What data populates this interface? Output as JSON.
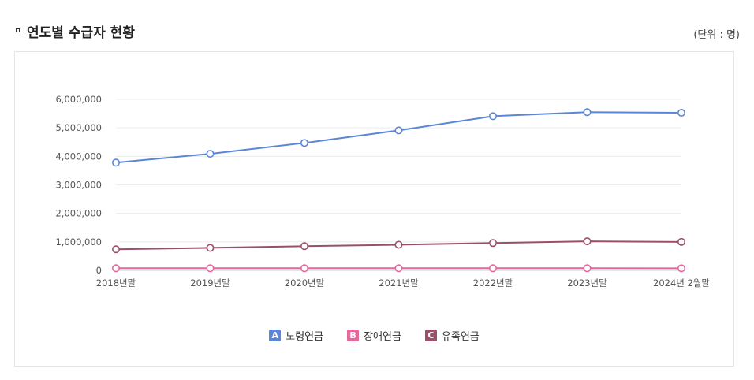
{
  "header": {
    "title": "연도별 수급자 현황",
    "unit": "(단위 : 명)"
  },
  "colors": {
    "old_age": "#5b86d6",
    "disability": "#e4679e",
    "survivor": "#9a5068"
  },
  "chart_data": {
    "type": "line",
    "title": "",
    "xlabel": "",
    "ylabel": "",
    "ylim": [
      0,
      6000000
    ],
    "yticks": [
      0,
      1000000,
      2000000,
      3000000,
      4000000,
      5000000,
      6000000
    ],
    "ytick_labels": [
      "0",
      "1,000,000",
      "2,000,000",
      "3,000,000",
      "4,000,000",
      "5,000,000",
      "6,000,000"
    ],
    "categories": [
      "2018년말",
      "2019년말",
      "2020년말",
      "2021년말",
      "2022년말",
      "2023년말",
      "2024년 2월말"
    ],
    "series": [
      {
        "name": "노령연금",
        "badge": "A",
        "color": "#5b86d6",
        "values": [
          3780000,
          4090000,
          4470000,
          4910000,
          5410000,
          5550000,
          5530000
        ]
      },
      {
        "name": "장애연금",
        "badge": "B",
        "color": "#e4679e",
        "values": [
          75000,
          75000,
          75000,
          75000,
          75000,
          75000,
          74000
        ]
      },
      {
        "name": "유족연금",
        "badge": "C",
        "color": "#9a5068",
        "values": [
          740000,
          790000,
          850000,
          900000,
          960000,
          1020000,
          1000000
        ]
      }
    ],
    "grid": true,
    "legend_position": "bottom-center"
  }
}
